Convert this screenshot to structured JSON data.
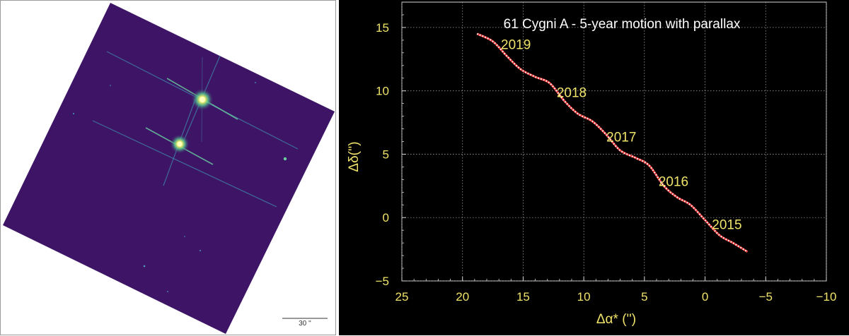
{
  "left_image": {
    "description_icon": "star-field-image",
    "scalebar_label": "30 ''",
    "background_color": "#3e1566",
    "star_color": "#f4f36a"
  },
  "chart_data": {
    "type": "line",
    "title": "61 Cygni A  -   5-year motion with parallax",
    "xlabel": "Δα* ('')",
    "ylabel": "Δδ('')",
    "xlim": [
      25,
      -10
    ],
    "ylim": [
      -5,
      17
    ],
    "x_ticks": [
      25,
      20,
      15,
      10,
      5,
      0,
      -5,
      -10
    ],
    "y_ticks": [
      -5,
      0,
      5,
      10,
      15
    ],
    "x_tick_labels": [
      "25",
      "20",
      "15",
      "10",
      "5",
      "0",
      "−5",
      "−10"
    ],
    "y_tick_labels": [
      "−5",
      "0",
      "5",
      "10",
      "15"
    ],
    "grid": true,
    "series": [
      {
        "color": "#ffffff",
        "line_color": "#e83a3a",
        "points": [
          [
            18.8,
            14.5
          ],
          [
            17.5,
            13.9
          ],
          [
            16.3,
            12.7
          ],
          [
            15.2,
            11.7
          ],
          [
            14.0,
            11.1
          ],
          [
            12.8,
            10.6
          ],
          [
            11.6,
            9.2
          ],
          [
            10.5,
            8.2
          ],
          [
            9.3,
            7.6
          ],
          [
            8.2,
            6.6
          ],
          [
            7.0,
            5.3
          ],
          [
            5.7,
            4.7
          ],
          [
            4.6,
            4.1
          ],
          [
            3.4,
            2.5
          ],
          [
            2.3,
            1.6
          ],
          [
            1.2,
            1.0
          ],
          [
            0.0,
            -0.2
          ],
          [
            -1.2,
            -1.4
          ],
          [
            -2.3,
            -2.0
          ],
          [
            -3.5,
            -2.7
          ]
        ]
      }
    ],
    "annotations": [
      {
        "text": "2019",
        "x": 15.6,
        "y": 13.3
      },
      {
        "text": "2018",
        "x": 11.0,
        "y": 9.5
      },
      {
        "text": "2017",
        "x": 6.9,
        "y": 6.0
      },
      {
        "text": "2016",
        "x": 2.6,
        "y": 2.5
      },
      {
        "text": "2015",
        "x": -1.8,
        "y": -0.9
      }
    ]
  }
}
